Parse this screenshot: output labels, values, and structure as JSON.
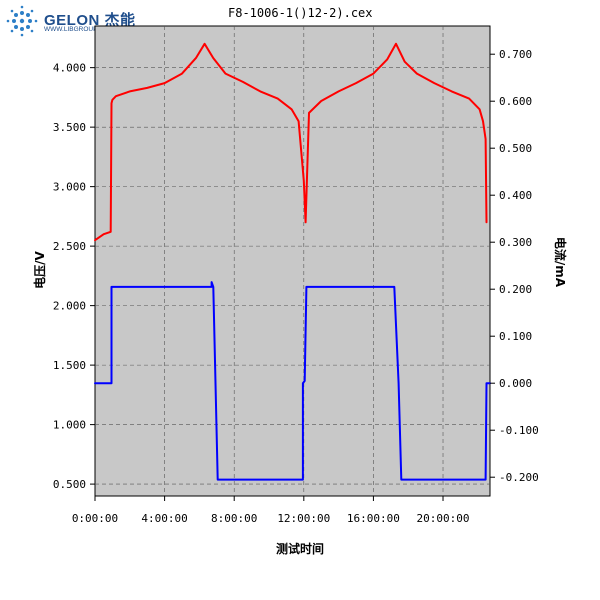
{
  "logo": {
    "brand": "GELON 杰能",
    "url": "WWW.LIBGROUP.NET"
  },
  "chart_data": {
    "type": "line",
    "title": "F8-1006-1()12-2).cex",
    "xlabel": "测试时间",
    "ylabel_left": "电压/V",
    "ylabel_right": "电流/mA",
    "x_unit": "hours",
    "xlim": [
      0,
      22.7
    ],
    "ylim_left": [
      0.4,
      4.35
    ],
    "ylim_right": [
      -0.24,
      0.76
    ],
    "x_ticks": [
      0,
      4,
      8,
      12,
      16,
      20
    ],
    "x_tick_labels": [
      "0:00:00",
      "4:00:00",
      "8:00:00",
      "12:00:00",
      "16:00:00",
      "20:00:00"
    ],
    "y_left_ticks": [
      0.5,
      1.0,
      1.5,
      2.0,
      2.5,
      3.0,
      3.5,
      4.0
    ],
    "y_left_tick_labels": [
      "0.500",
      "1.000",
      "1.500",
      "2.000",
      "2.500",
      "3.000",
      "3.500",
      "4.000"
    ],
    "y_right_ticks": [
      -0.2,
      -0.1,
      0.0,
      0.1,
      0.2,
      0.3,
      0.4,
      0.5,
      0.6,
      0.7
    ],
    "y_right_tick_labels": [
      "-0.200",
      "-0.100",
      "0.000",
      "0.100",
      "0.200",
      "0.300",
      "0.400",
      "0.500",
      "0.600",
      "0.700"
    ],
    "grid": true,
    "series": [
      {
        "axis": "left",
        "color": "#ff0000",
        "x": [
          0,
          0.5,
          0.9,
          0.95,
          1.0,
          1.2,
          2.0,
          3.0,
          4.0,
          5.0,
          5.8,
          6.3,
          6.8,
          7.5,
          8.5,
          9.5,
          10.5,
          11.3,
          11.7,
          12.0,
          12.1,
          12.3,
          13.0,
          14.0,
          15.0,
          16.0,
          16.8,
          17.3,
          17.8,
          18.5,
          19.5,
          20.5,
          21.5,
          22.1,
          22.3,
          22.45,
          22.5
        ],
        "y": [
          2.55,
          2.6,
          2.62,
          3.7,
          3.73,
          3.76,
          3.8,
          3.83,
          3.87,
          3.95,
          4.08,
          4.2,
          4.08,
          3.95,
          3.88,
          3.8,
          3.74,
          3.65,
          3.55,
          3.05,
          2.7,
          3.62,
          3.72,
          3.8,
          3.87,
          3.95,
          4.07,
          4.2,
          4.05,
          3.95,
          3.87,
          3.8,
          3.74,
          3.65,
          3.55,
          3.4,
          2.7
        ]
      },
      {
        "axis": "right",
        "color": "#0000ff",
        "x": [
          0,
          0.95,
          0.95,
          6.7,
          6.7,
          6.8,
          7.05,
          11.95,
          11.95,
          12.05,
          12.15,
          17.2,
          17.45,
          17.6,
          22.45,
          22.5,
          22.7
        ],
        "y": [
          0.0,
          0.0,
          0.205,
          0.205,
          0.215,
          0.205,
          -0.205,
          -0.205,
          -0.0,
          0.005,
          0.205,
          0.205,
          0.0,
          -0.205,
          -0.205,
          0.0,
          0.0
        ]
      }
    ]
  }
}
